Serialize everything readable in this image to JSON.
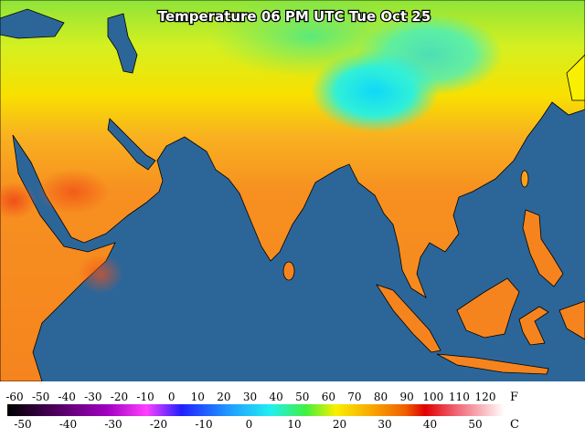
{
  "map": {
    "title": "Temperature 06 PM UTC Tue Oct 25"
  },
  "legend": {
    "fahrenheit": {
      "unit": "F",
      "labels": [
        -60,
        -50,
        -40,
        -30,
        -20,
        -10,
        0,
        10,
        20,
        30,
        40,
        50,
        60,
        70,
        80,
        90,
        100,
        110,
        120
      ]
    },
    "celsius": {
      "unit": "C",
      "labels": [
        -50,
        -40,
        -30,
        -20,
        -10,
        0,
        10,
        20,
        30,
        40,
        50
      ]
    }
  }
}
